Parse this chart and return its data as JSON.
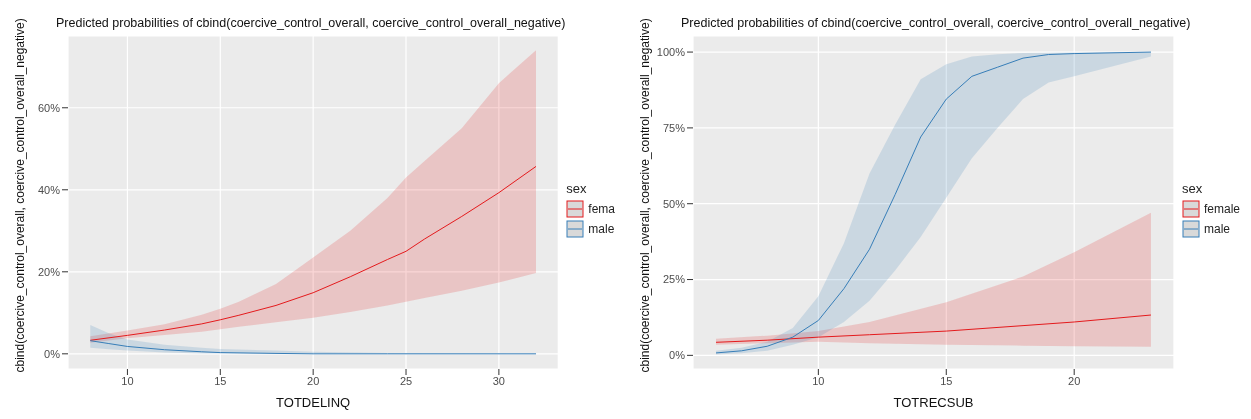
{
  "chart_data": [
    {
      "type": "line",
      "title": "Predicted probabilities of cbind(coercive_control_overall, coercive_control_overall_negative)",
      "xlabel": "TOTDELINQ",
      "ylabel": "cbind(coercive_control_overall, coercive_control_overall_negative)",
      "legend_title": "sex",
      "legend": "right",
      "grid": true,
      "xlim": [
        6.8,
        33.2
      ],
      "xticks": [
        10,
        15,
        20,
        25,
        30
      ],
      "ylim": [
        -3.7,
        77.5
      ],
      "yticks": [
        {
          "value": 0,
          "label": "0%"
        },
        {
          "value": 20,
          "label": "20%"
        },
        {
          "value": 40,
          "label": "40%"
        },
        {
          "value": 60,
          "label": "60%"
        }
      ],
      "series": [
        {
          "name": "fema",
          "color": "#e41a1c",
          "x": [
            8,
            10,
            12,
            14,
            15,
            16,
            18,
            20,
            22,
            24,
            25,
            26,
            28,
            30,
            32
          ],
          "values": [
            3.3,
            4.5,
            5.8,
            7.3,
            8.3,
            9.4,
            11.8,
            14.9,
            18.8,
            23,
            25,
            28,
            33.5,
            39.3,
            45.7
          ],
          "lower": [
            2.7,
            3.8,
            4.6,
            5.4,
            6,
            6.6,
            7.7,
            8.8,
            10.2,
            11.8,
            12.7,
            13.6,
            15.4,
            17.4,
            19.7
          ],
          "upper": [
            4.3,
            5.7,
            7.2,
            9.5,
            11,
            12.7,
            17,
            23.5,
            30,
            38,
            43,
            47,
            55,
            66,
            74
          ]
        },
        {
          "name": "male",
          "color": "#377eb8",
          "x": [
            8,
            9,
            10,
            12,
            14,
            15,
            18,
            20,
            24,
            32
          ],
          "values": [
            3.2,
            2.5,
            1.8,
            1,
            0.5,
            0.3,
            0.1,
            0,
            0,
            0
          ],
          "lower": [
            1.5,
            1.1,
            0.8,
            0.3,
            0.1,
            0.1,
            0,
            0,
            0,
            0
          ],
          "upper": [
            7,
            5,
            3.5,
            2.2,
            1.5,
            1.2,
            0.8,
            0.5,
            0.2,
            0
          ]
        }
      ]
    },
    {
      "type": "line",
      "title": "Predicted probabilities of cbind(coercive_control_overall, coercive_control_overall_negative)",
      "xlabel": "TOTRECSUB",
      "ylabel": "cbind(coercive_control_overall, coercive_control_overall_negative)",
      "legend_title": "sex",
      "legend": "right",
      "grid": true,
      "xlim": [
        5.1,
        23.9
      ],
      "xticks": [
        10,
        15,
        20
      ],
      "ylim": [
        -4.5,
        105.3
      ],
      "yticks": [
        {
          "value": 0,
          "label": "0%"
        },
        {
          "value": 25,
          "label": "25%"
        },
        {
          "value": 50,
          "label": "50%"
        },
        {
          "value": 75,
          "label": "75%"
        },
        {
          "value": 100,
          "label": "100%"
        }
      ],
      "series": [
        {
          "name": "female",
          "color": "#e41a1c",
          "x": [
            6,
            8,
            10,
            12,
            15,
            18,
            20,
            23
          ],
          "values": [
            4.3,
            5,
            6,
            6.8,
            8,
            9.8,
            11,
            13.3
          ],
          "lower": [
            3.5,
            4,
            4.5,
            4,
            3.5,
            3.2,
            3,
            2.8
          ],
          "upper": [
            5.5,
            6.5,
            8,
            11,
            17.5,
            26,
            34,
            47
          ]
        },
        {
          "name": "male",
          "color": "#377eb8",
          "x": [
            6,
            7,
            8,
            9,
            10,
            11,
            12,
            13,
            14,
            15,
            16,
            17,
            18,
            19,
            20,
            23
          ],
          "values": [
            0.8,
            1.5,
            3,
            6,
            11.5,
            22,
            35,
            53,
            72,
            84.5,
            92,
            95,
            98,
            99.2,
            99.5,
            100
          ],
          "lower": [
            0.3,
            0.7,
            1.5,
            3.5,
            6,
            11,
            18,
            28,
            39,
            52,
            65,
            75,
            84.5,
            90,
            92,
            98.5
          ],
          "upper": [
            1.5,
            2.5,
            4.5,
            9,
            19.5,
            37,
            60,
            76,
            91,
            96,
            98.5,
            99.3,
            99.7,
            99.8,
            99.9,
            100
          ]
        }
      ]
    }
  ]
}
